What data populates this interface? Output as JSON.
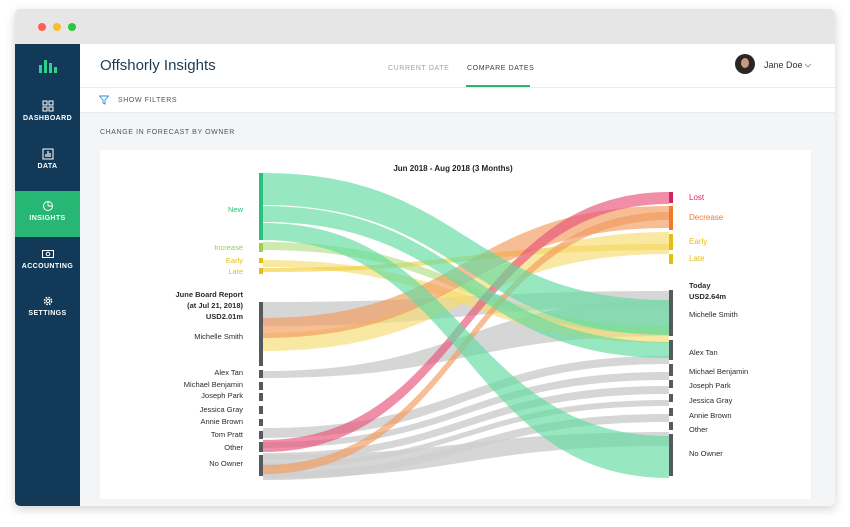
{
  "window": {
    "traffic_lights": [
      "close",
      "minimize",
      "zoom"
    ]
  },
  "sidebar": {
    "logo_icon": "bar-chart-logo-icon",
    "items": [
      {
        "label": "DASHBOARD",
        "icon": "grid-icon",
        "active": false
      },
      {
        "label": "DATA",
        "icon": "bar-chart-icon",
        "active": false
      },
      {
        "label": "INSIGHTS",
        "icon": "pie-chart-icon",
        "active": true
      },
      {
        "label": "ACCOUNTING",
        "icon": "cash-icon",
        "active": false
      },
      {
        "label": "SETTINGS",
        "icon": "gear-icon",
        "active": false
      }
    ]
  },
  "header": {
    "title": "Offshorly Insights",
    "tabs": [
      {
        "label": "CURRENT DATE",
        "active": false
      },
      {
        "label": "COMPARE DATES",
        "active": true
      }
    ],
    "user": {
      "name": "Jane Doe"
    }
  },
  "filters": {
    "label": "SHOW FILTERS"
  },
  "section": {
    "label": "CHANGE IN FORECAST BY OWNER"
  },
  "chart": {
    "period": "Jun 2018 - Aug 2018 (3 Months)",
    "colors": {
      "new": "#5fdca0",
      "increase": "#b5de82",
      "early": "#f2cf3c",
      "late": "#f6dc6e",
      "lost": "#e8527a",
      "decrease": "#f3995c",
      "neutral": "#cfcfcf",
      "node": "#555a5f"
    },
    "left": {
      "categories": [
        {
          "label": "New",
          "color": "#27c27a"
        },
        {
          "label": "Increase",
          "color": "#9ccc52"
        },
        {
          "label": "Early",
          "color": "#e5be15"
        },
        {
          "label": "Late",
          "color": "#e5be15"
        }
      ],
      "board_report": [
        "June Board Report",
        "(at Jul 21, 2018)",
        "USD2.01m"
      ],
      "owners": [
        "Michelle Smith",
        "Alex Tan",
        "Michael Benjamin",
        "Joseph Park",
        "Jessica Gray",
        "Annie Brown",
        "Tom Pratt",
        "Other",
        "No Owner"
      ]
    },
    "right": {
      "categories": [
        {
          "label": "Lost",
          "color": "#d8245a"
        },
        {
          "label": "Decrease",
          "color": "#ee7a2a"
        },
        {
          "label": "Early",
          "color": "#e5be15"
        },
        {
          "label": "Late",
          "color": "#e5be15"
        }
      ],
      "today": [
        "Today",
        "USD2.64m"
      ],
      "owners": [
        "Michelle Smith",
        "Alex Tan",
        "Michael Benjamin",
        "Joseph Park",
        "Jessica Gray",
        "Annie Brown",
        "Other",
        "No Owner"
      ]
    }
  }
}
